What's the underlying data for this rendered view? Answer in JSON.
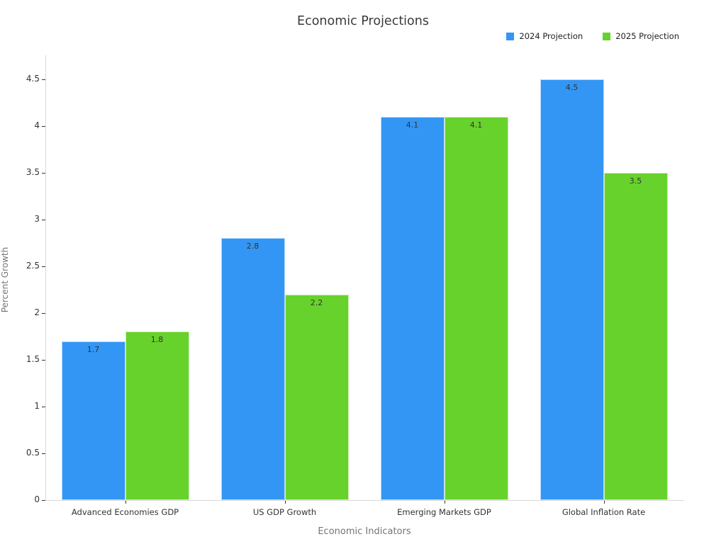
{
  "chart_data": {
    "type": "bar",
    "title": "Economic Projections",
    "xlabel": "Economic Indicators",
    "ylabel": "Percent Growth",
    "categories": [
      "Advanced Economies GDP",
      "US GDP Growth",
      "Emerging Markets GDP",
      "Global Inflation Rate"
    ],
    "series": [
      {
        "name": "2024 Projection",
        "color": "#3396f4",
        "values": [
          1.7,
          2.8,
          4.1,
          4.5
        ]
      },
      {
        "name": "2025 Projection",
        "color": "#67d22b",
        "values": [
          1.8,
          2.2,
          4.1,
          3.5
        ]
      }
    ],
    "bar_value_labels": [
      [
        "1.7",
        "2.8",
        "4.1",
        "4.5"
      ],
      [
        "1.8",
        "2.2",
        "4.1",
        "3.5"
      ]
    ],
    "ylim": [
      0,
      4.5
    ],
    "yticks": [
      "0",
      "0.5",
      "1",
      "1.5",
      "2",
      "2.5",
      "3",
      "3.5",
      "4",
      "4.5"
    ],
    "grid": false,
    "legend_position": "top-right"
  }
}
